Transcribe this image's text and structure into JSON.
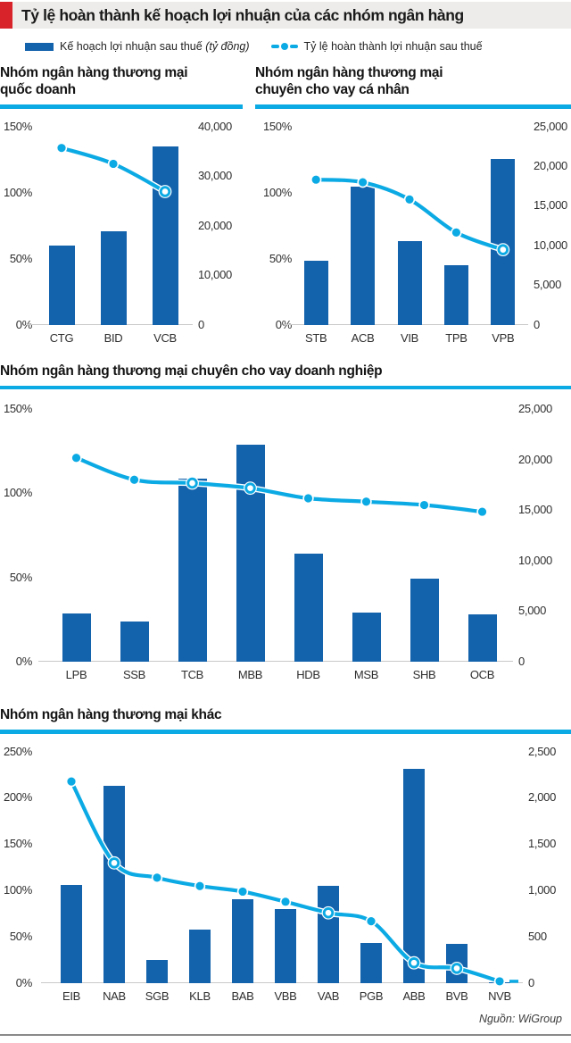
{
  "header": {
    "title": "Tỷ lệ hoàn thành kế hoạch lợi nhuận của các nhóm ngân hàng"
  },
  "legend": {
    "bar_label": "Kế hoạch lợi nhuận sau thuế",
    "bar_label_unit": "(tỷ đồng)",
    "line_label": "Tỷ lệ hoàn thành lợi nhuận sau thuế"
  },
  "source": "Nguồn: WiGroup",
  "colors": {
    "bar": "#1362ac",
    "line": "#0caae4",
    "accent_red": "#d8232a",
    "title_band": "#edecea",
    "axis_line": "#c9c9c9",
    "footer_rule": "#8a8a8a"
  },
  "chart_data": [
    {
      "type": "bar+line",
      "title": "Nhóm ngân hàng thương mại quốc doanh",
      "categories": [
        "CTG",
        "BID",
        "VCB"
      ],
      "series": [
        {
          "name": "Kế hoạch lợi nhuận sau thuế (tỷ đồng)",
          "type": "bar",
          "axis": "right",
          "values": [
            16000,
            18900,
            35900
          ]
        },
        {
          "name": "Tỷ lệ hoàn thành lợi nhuận sau thuế (%)",
          "type": "line",
          "axis": "left",
          "values": [
            134,
            122,
            101
          ]
        }
      ],
      "left_axis": {
        "unit": "%",
        "min": 0,
        "max": 150,
        "ticks": [
          0,
          50,
          100,
          150
        ]
      },
      "right_axis": {
        "min": 0,
        "max": 40000,
        "ticks": [
          0,
          10000,
          20000,
          30000,
          40000
        ]
      },
      "grid": false,
      "legend_position": "top-shared"
    },
    {
      "type": "bar+line",
      "title": "Nhóm ngân hàng thương mại chuyên cho vay cá nhân",
      "categories": [
        "STB",
        "ACB",
        "VIB",
        "TPB",
        "VPB"
      ],
      "series": [
        {
          "name": "Kế hoạch lợi nhuận sau thuế (tỷ đồng)",
          "type": "bar",
          "axis": "right",
          "values": [
            8100,
            17350,
            10500,
            7450,
            20900
          ]
        },
        {
          "name": "Tỷ lệ hoàn thành lợi nhuận sau thuế (%)",
          "type": "line",
          "axis": "left",
          "values": [
            110,
            108,
            95,
            70,
            57
          ]
        }
      ],
      "left_axis": {
        "unit": "%",
        "min": 0,
        "max": 150,
        "ticks": [
          0,
          50,
          100,
          150
        ]
      },
      "right_axis": {
        "min": 0,
        "max": 25000,
        "ticks": [
          0,
          5000,
          10000,
          15000,
          20000,
          25000
        ]
      },
      "grid": false,
      "legend_position": "top-shared"
    },
    {
      "type": "bar+line",
      "title": "Nhóm ngân hàng thương mại chuyên cho vay doanh nghiệp",
      "categories": [
        "LPB",
        "SSB",
        "TCB",
        "MBB",
        "HDB",
        "MSB",
        "SHB",
        "OCB"
      ],
      "series": [
        {
          "name": "Kế hoạch lợi nhuận sau thuế (tỷ đồng)",
          "type": "bar",
          "axis": "right",
          "values": [
            4800,
            3950,
            18100,
            21500,
            10700,
            4900,
            8250,
            4700
          ]
        },
        {
          "name": "Tỷ lệ hoàn thành lợi nhuận sau thuế (%)",
          "type": "line",
          "axis": "left",
          "values": [
            121,
            108,
            106,
            103,
            97,
            95,
            93,
            89
          ]
        }
      ],
      "left_axis": {
        "unit": "%",
        "min": 0,
        "max": 150,
        "ticks": [
          0,
          50,
          100,
          150
        ]
      },
      "right_axis": {
        "min": 0,
        "max": 25000,
        "ticks": [
          0,
          5000,
          10000,
          15000,
          20000,
          25000
        ]
      },
      "grid": false,
      "legend_position": "top-shared"
    },
    {
      "type": "bar+line",
      "title": "Nhóm ngân hàng thương mại khác",
      "categories": [
        "EIB",
        "NAB",
        "SGB",
        "KLB",
        "BAB",
        "VBB",
        "VAB",
        "PGB",
        "ABB",
        "BVB",
        "NVB"
      ],
      "series": [
        {
          "name": "Kế hoạch lợi nhuận sau thuế (tỷ đồng)",
          "type": "bar",
          "axis": "right",
          "values": [
            1060,
            2130,
            250,
            570,
            900,
            795,
            1050,
            430,
            2310,
            420,
            1
          ]
        },
        {
          "name": "Tỷ lệ hoàn thành lợi nhuận sau thuế (%)",
          "type": "line",
          "axis": "left",
          "values": [
            218,
            130,
            114,
            105,
            99,
            88,
            76,
            67,
            22,
            16,
            2
          ]
        }
      ],
      "left_axis": {
        "unit": "%",
        "min": 0,
        "max": 250,
        "ticks": [
          0,
          50,
          100,
          150,
          200,
          250
        ]
      },
      "right_axis": {
        "min": 0,
        "max": 2500,
        "ticks": [
          0,
          500,
          1000,
          1500,
          2000,
          2500
        ]
      },
      "grid": false,
      "legend_position": "top-shared"
    }
  ]
}
